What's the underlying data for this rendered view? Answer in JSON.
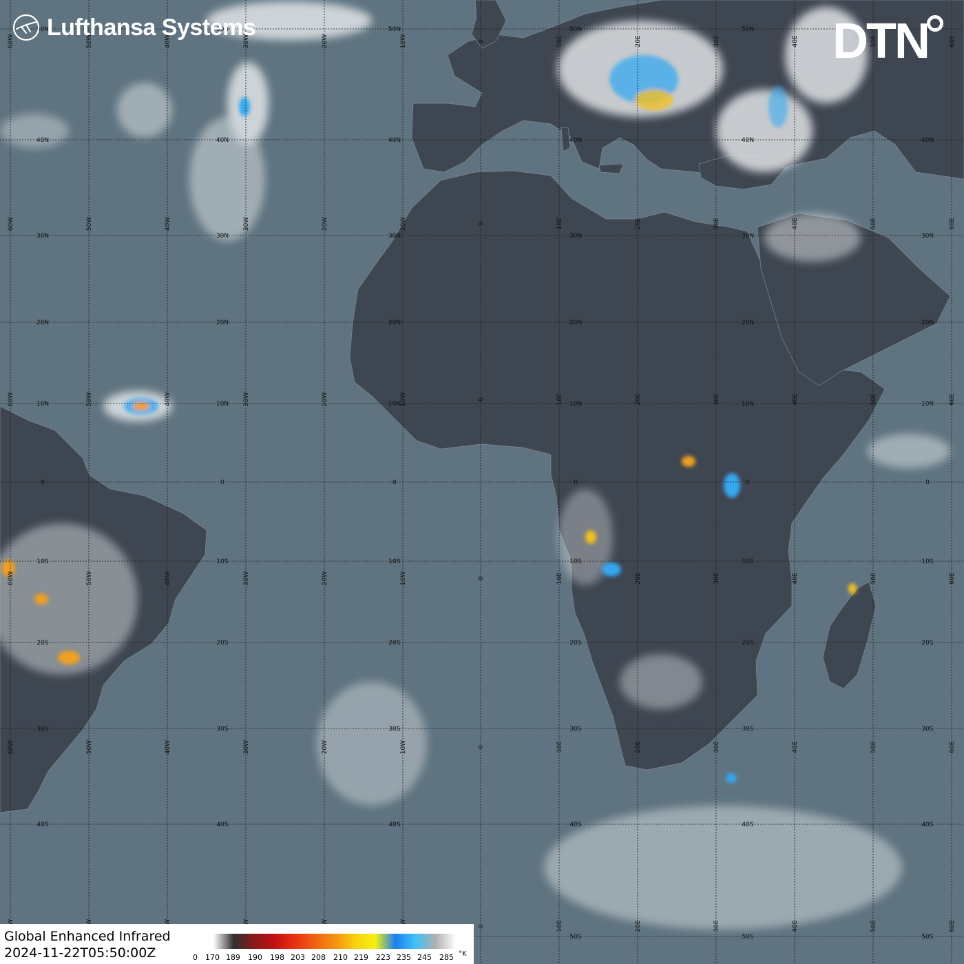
{
  "branding": {
    "left_logo_icon": "lufthansa-crane-icon",
    "left_logo_text": "Lufthansa Systems",
    "right_logo_text": "DTN"
  },
  "product": {
    "title": "Global Enhanced Infrared",
    "valid_time": "2024-11-22T05:50:00Z"
  },
  "colorbar": {
    "unit": "°K",
    "ticks": [
      "0",
      "170",
      "189",
      "190",
      "198",
      "203",
      "208",
      "210",
      "219",
      "223",
      "235",
      "245",
      "285"
    ],
    "colors": [
      "#ffffff",
      "#303030",
      "#8a1a1a",
      "#c01010",
      "#e83010",
      "#f06010",
      "#f59010",
      "#f8d010",
      "#f5f010",
      "#1a80f0",
      "#40c0f8",
      "#b0b0b0",
      "#ffffff"
    ]
  },
  "map": {
    "lat_labels": [
      "50N",
      "40N",
      "30N",
      "20N",
      "10N",
      "0",
      "10S",
      "20S",
      "30S",
      "40S",
      "50S"
    ],
    "lon_labels": [
      "60W",
      "50W",
      "40W",
      "30W",
      "20W",
      "10W",
      "0",
      "10E",
      "20E",
      "30E",
      "40E",
      "50E",
      "60E"
    ],
    "colors": {
      "ocean": "#5f7480",
      "land": "#3e4651",
      "grid": "#1a1a1a",
      "cloud": "#e9ecee",
      "cold_top": "#35a8f0",
      "deep_convection": "#f0a020"
    }
  }
}
